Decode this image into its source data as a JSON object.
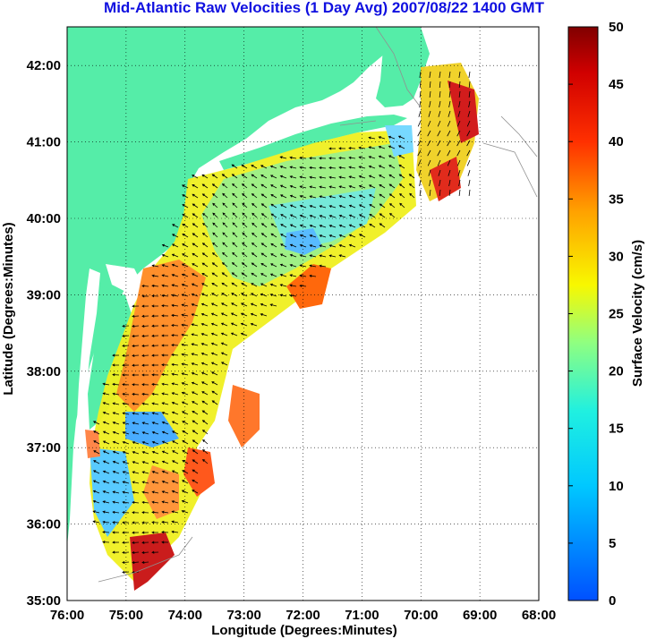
{
  "title": "Mid-Atlantic Raw Velocities (1 Day Avg) 2007/08/22 1400 GMT",
  "axes": {
    "xlabel": "Longitude (Degrees:Minutes)",
    "ylabel": "Latitude (Degrees:Minutes)",
    "x_ticks": [
      "76:00",
      "75:00",
      "74:00",
      "73:00",
      "72:00",
      "71:00",
      "70:00",
      "69:00",
      "68:00"
    ],
    "y_ticks": [
      "42:00",
      "41:00",
      "40:00",
      "39:00",
      "38:00",
      "37:00",
      "36:00",
      "35:00"
    ]
  },
  "colorbar": {
    "label": "Surface Velocity (cm/s)",
    "ticks": [
      "50",
      "45",
      "40",
      "35",
      "30",
      "25",
      "20",
      "15",
      "10",
      "5",
      "0"
    ],
    "range": [
      0,
      50
    ],
    "colormap": [
      "#0000ff",
      "#00bfff",
      "#00ffff",
      "#7fffaf",
      "#ffff00",
      "#ffbf00",
      "#ff7f00",
      "#ff0000",
      "#800000"
    ]
  },
  "colors": {
    "land": "#55eda8",
    "ocean": "#ffffff",
    "grid": "#000000",
    "title": "#1010e0"
  },
  "legend_arrow_note": ""
}
